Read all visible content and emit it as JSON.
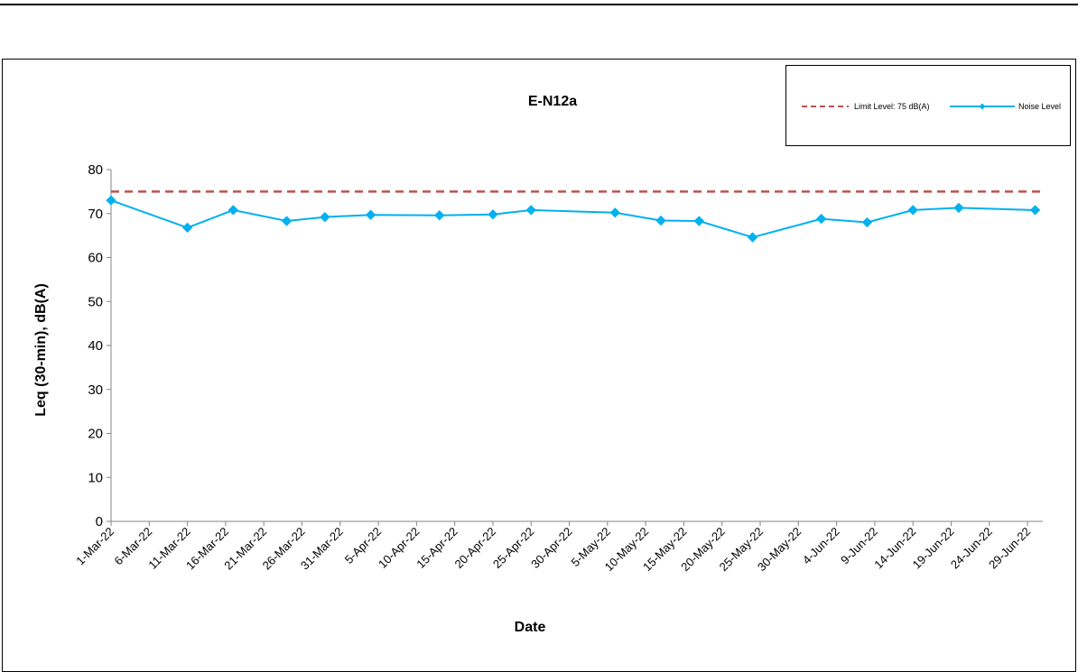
{
  "chart_data": {
    "type": "line",
    "title": "E-N12a",
    "xlabel": "Date",
    "ylabel": "Leq (30-min), dB(A)",
    "ylim": [
      0,
      80
    ],
    "yticks": [
      "0",
      "10",
      "20",
      "30",
      "40",
      "50",
      "60",
      "70",
      "80"
    ],
    "xlim": [
      "2022-03-01",
      "2022-07-01"
    ],
    "xticks": [
      "1-Mar-22",
      "6-Mar-22",
      "11-Mar-22",
      "16-Mar-22",
      "21-Mar-22",
      "26-Mar-22",
      "31-Mar-22",
      "5-Apr-22",
      "10-Apr-22",
      "15-Apr-22",
      "20-Apr-22",
      "25-Apr-22",
      "30-Apr-22",
      "5-May-22",
      "10-May-22",
      "15-May-22",
      "20-May-22",
      "25-May-22",
      "30-May-22",
      "4-Jun-22",
      "9-Jun-22",
      "14-Jun-22",
      "19-Jun-22",
      "24-Jun-22",
      "29-Jun-22"
    ],
    "grid": false,
    "legend_position": "top-right",
    "series": [
      {
        "name": "Limit Level: 75 dB(A)",
        "style": "dashed",
        "color": "#c0504d",
        "x": [
          "2022-03-01",
          "2022-07-01"
        ],
        "y": [
          75,
          75
        ]
      },
      {
        "name": "Noise Level",
        "style": "line-diamond",
        "color": "#00b0f0",
        "x": [
          "2022-03-01",
          "2022-03-11",
          "2022-03-17",
          "2022-03-24",
          "2022-03-29",
          "2022-04-04",
          "2022-04-13",
          "2022-04-20",
          "2022-04-25",
          "2022-05-06",
          "2022-05-12",
          "2022-05-17",
          "2022-05-24",
          "2022-06-02",
          "2022-06-08",
          "2022-06-14",
          "2022-06-20",
          "2022-06-30"
        ],
        "y": [
          73.0,
          66.8,
          70.8,
          68.3,
          69.2,
          69.7,
          69.6,
          69.8,
          70.8,
          70.2,
          68.4,
          68.3,
          64.6,
          68.8,
          68.0,
          70.8,
          71.3,
          70.8
        ]
      }
    ]
  }
}
